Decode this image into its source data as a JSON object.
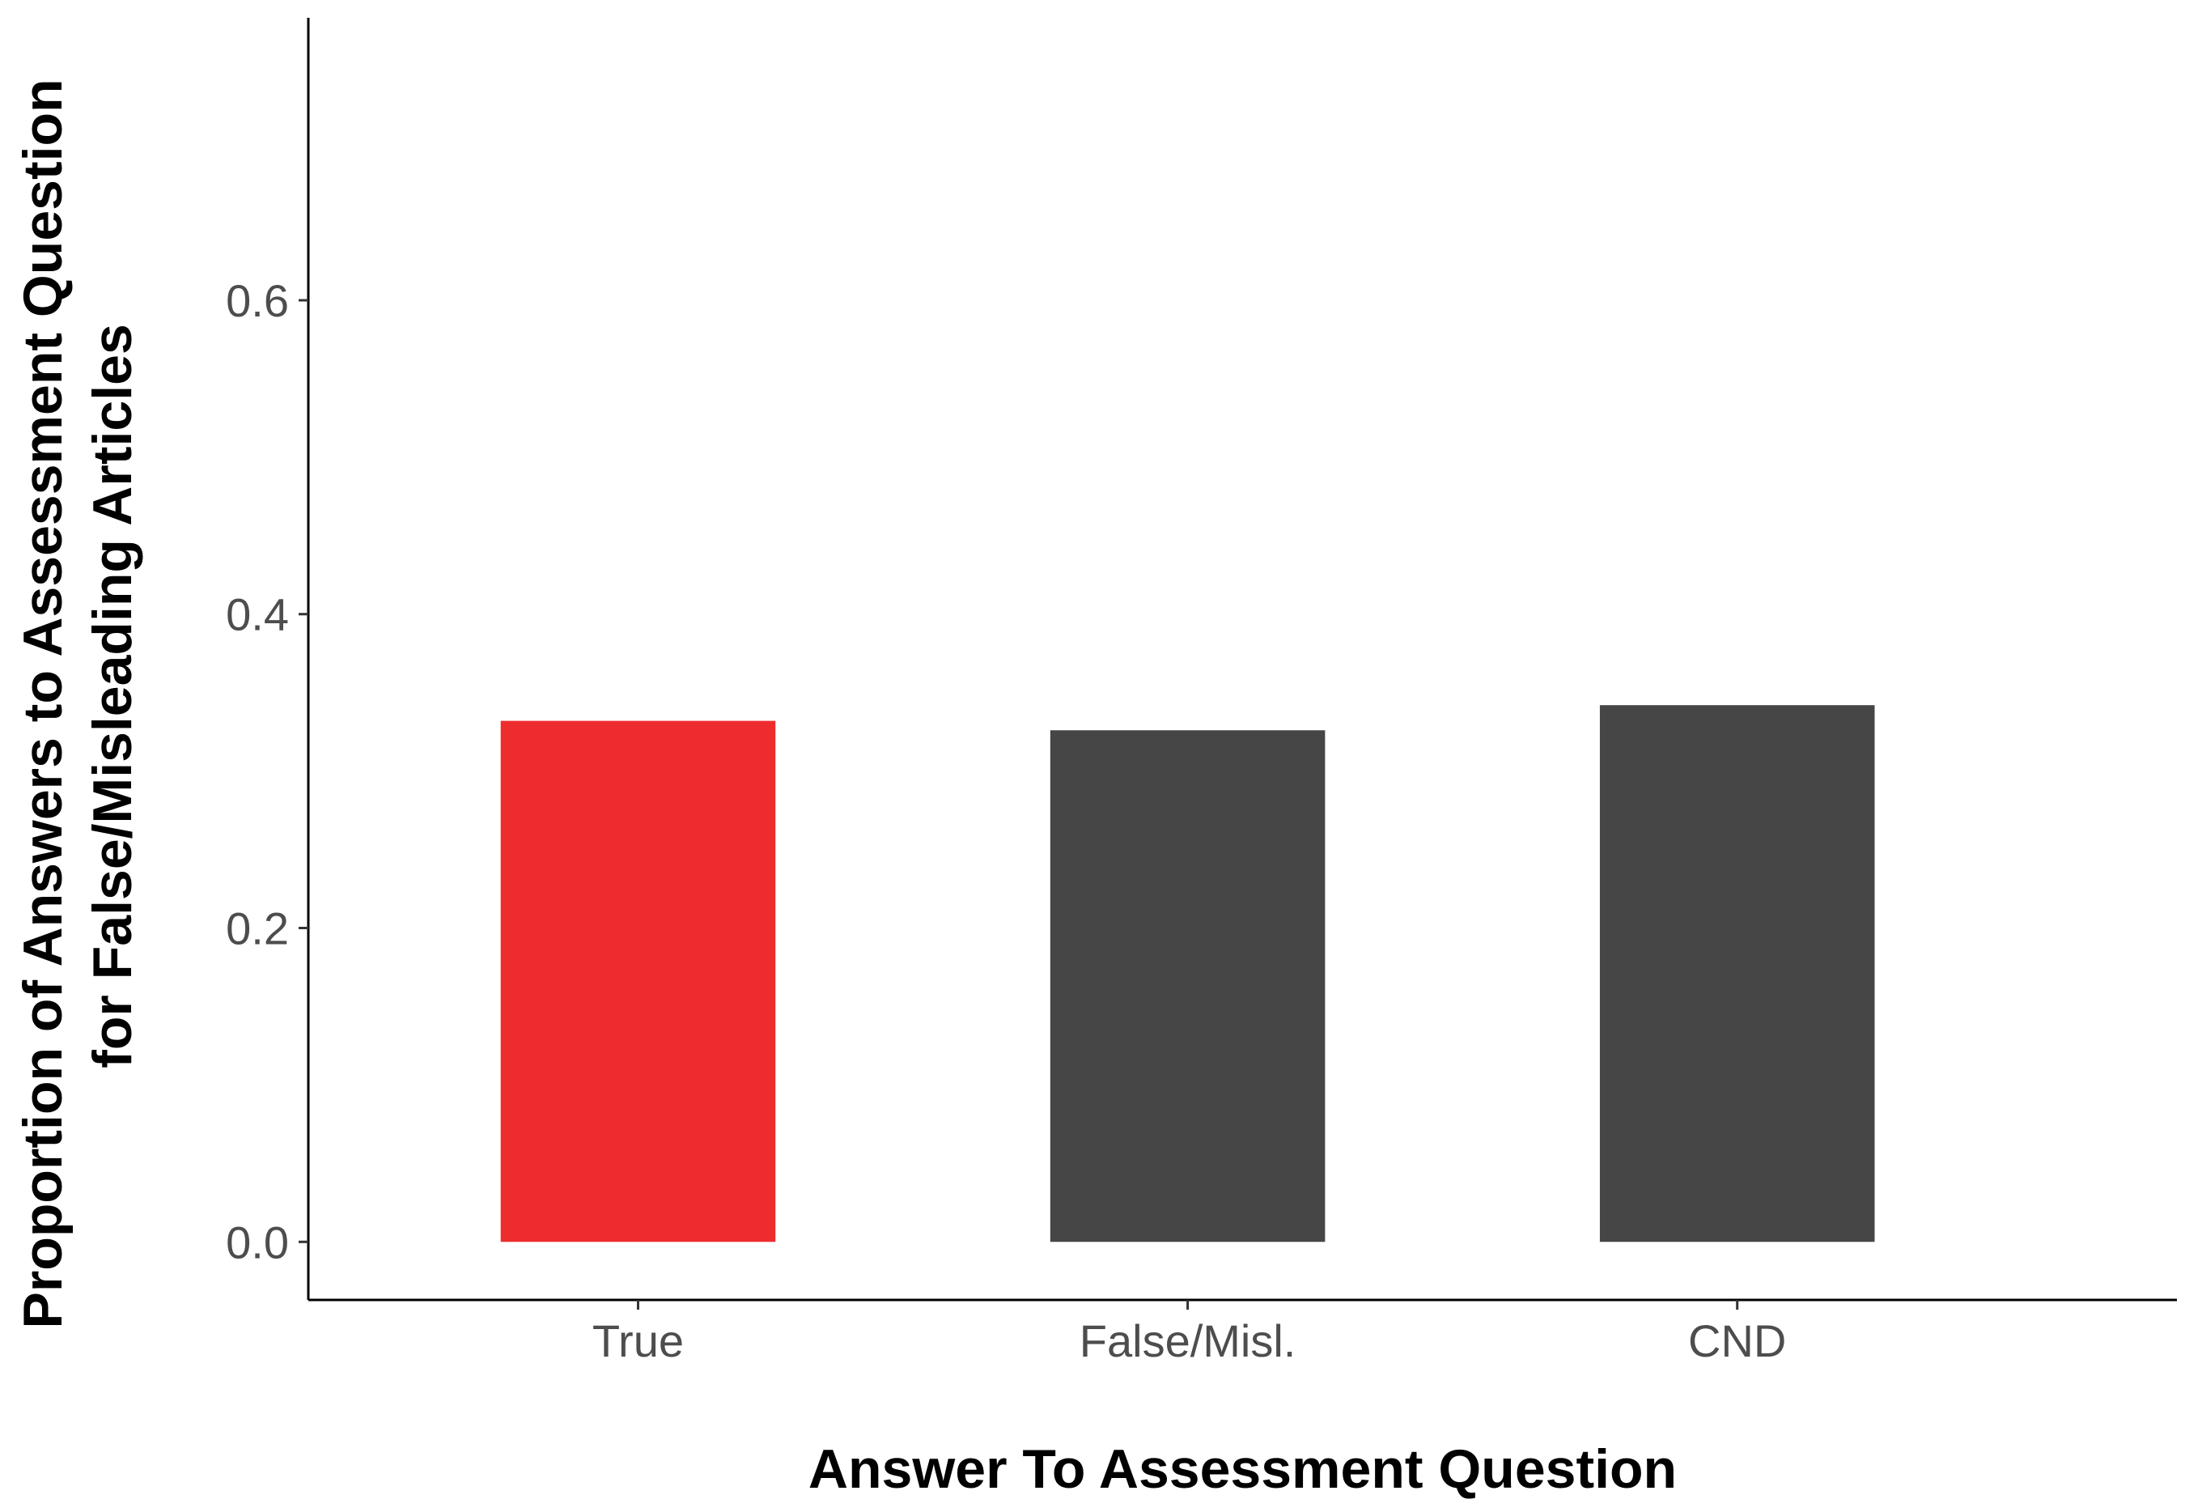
{
  "chart_data": {
    "type": "bar",
    "categories": [
      "True",
      "False/Misl.",
      "CND"
    ],
    "values": [
      0.332,
      0.326,
      0.342
    ],
    "bar_colors": [
      "#ee2c2e",
      "#464646",
      "#464646"
    ],
    "title": "",
    "xlabel": "Answer To Assessment Question",
    "ylabel_lines": [
      "Proportion of Answers to Assessment Question",
      "for False/Misleading Articles"
    ],
    "ylim": [
      -0.037,
      0.78
    ],
    "yticks": [
      0.0,
      0.2,
      0.4,
      0.6
    ],
    "ytick_labels": [
      "0.0",
      "0.2",
      "0.4",
      "0.6"
    ],
    "grid": false,
    "legend": "none"
  }
}
